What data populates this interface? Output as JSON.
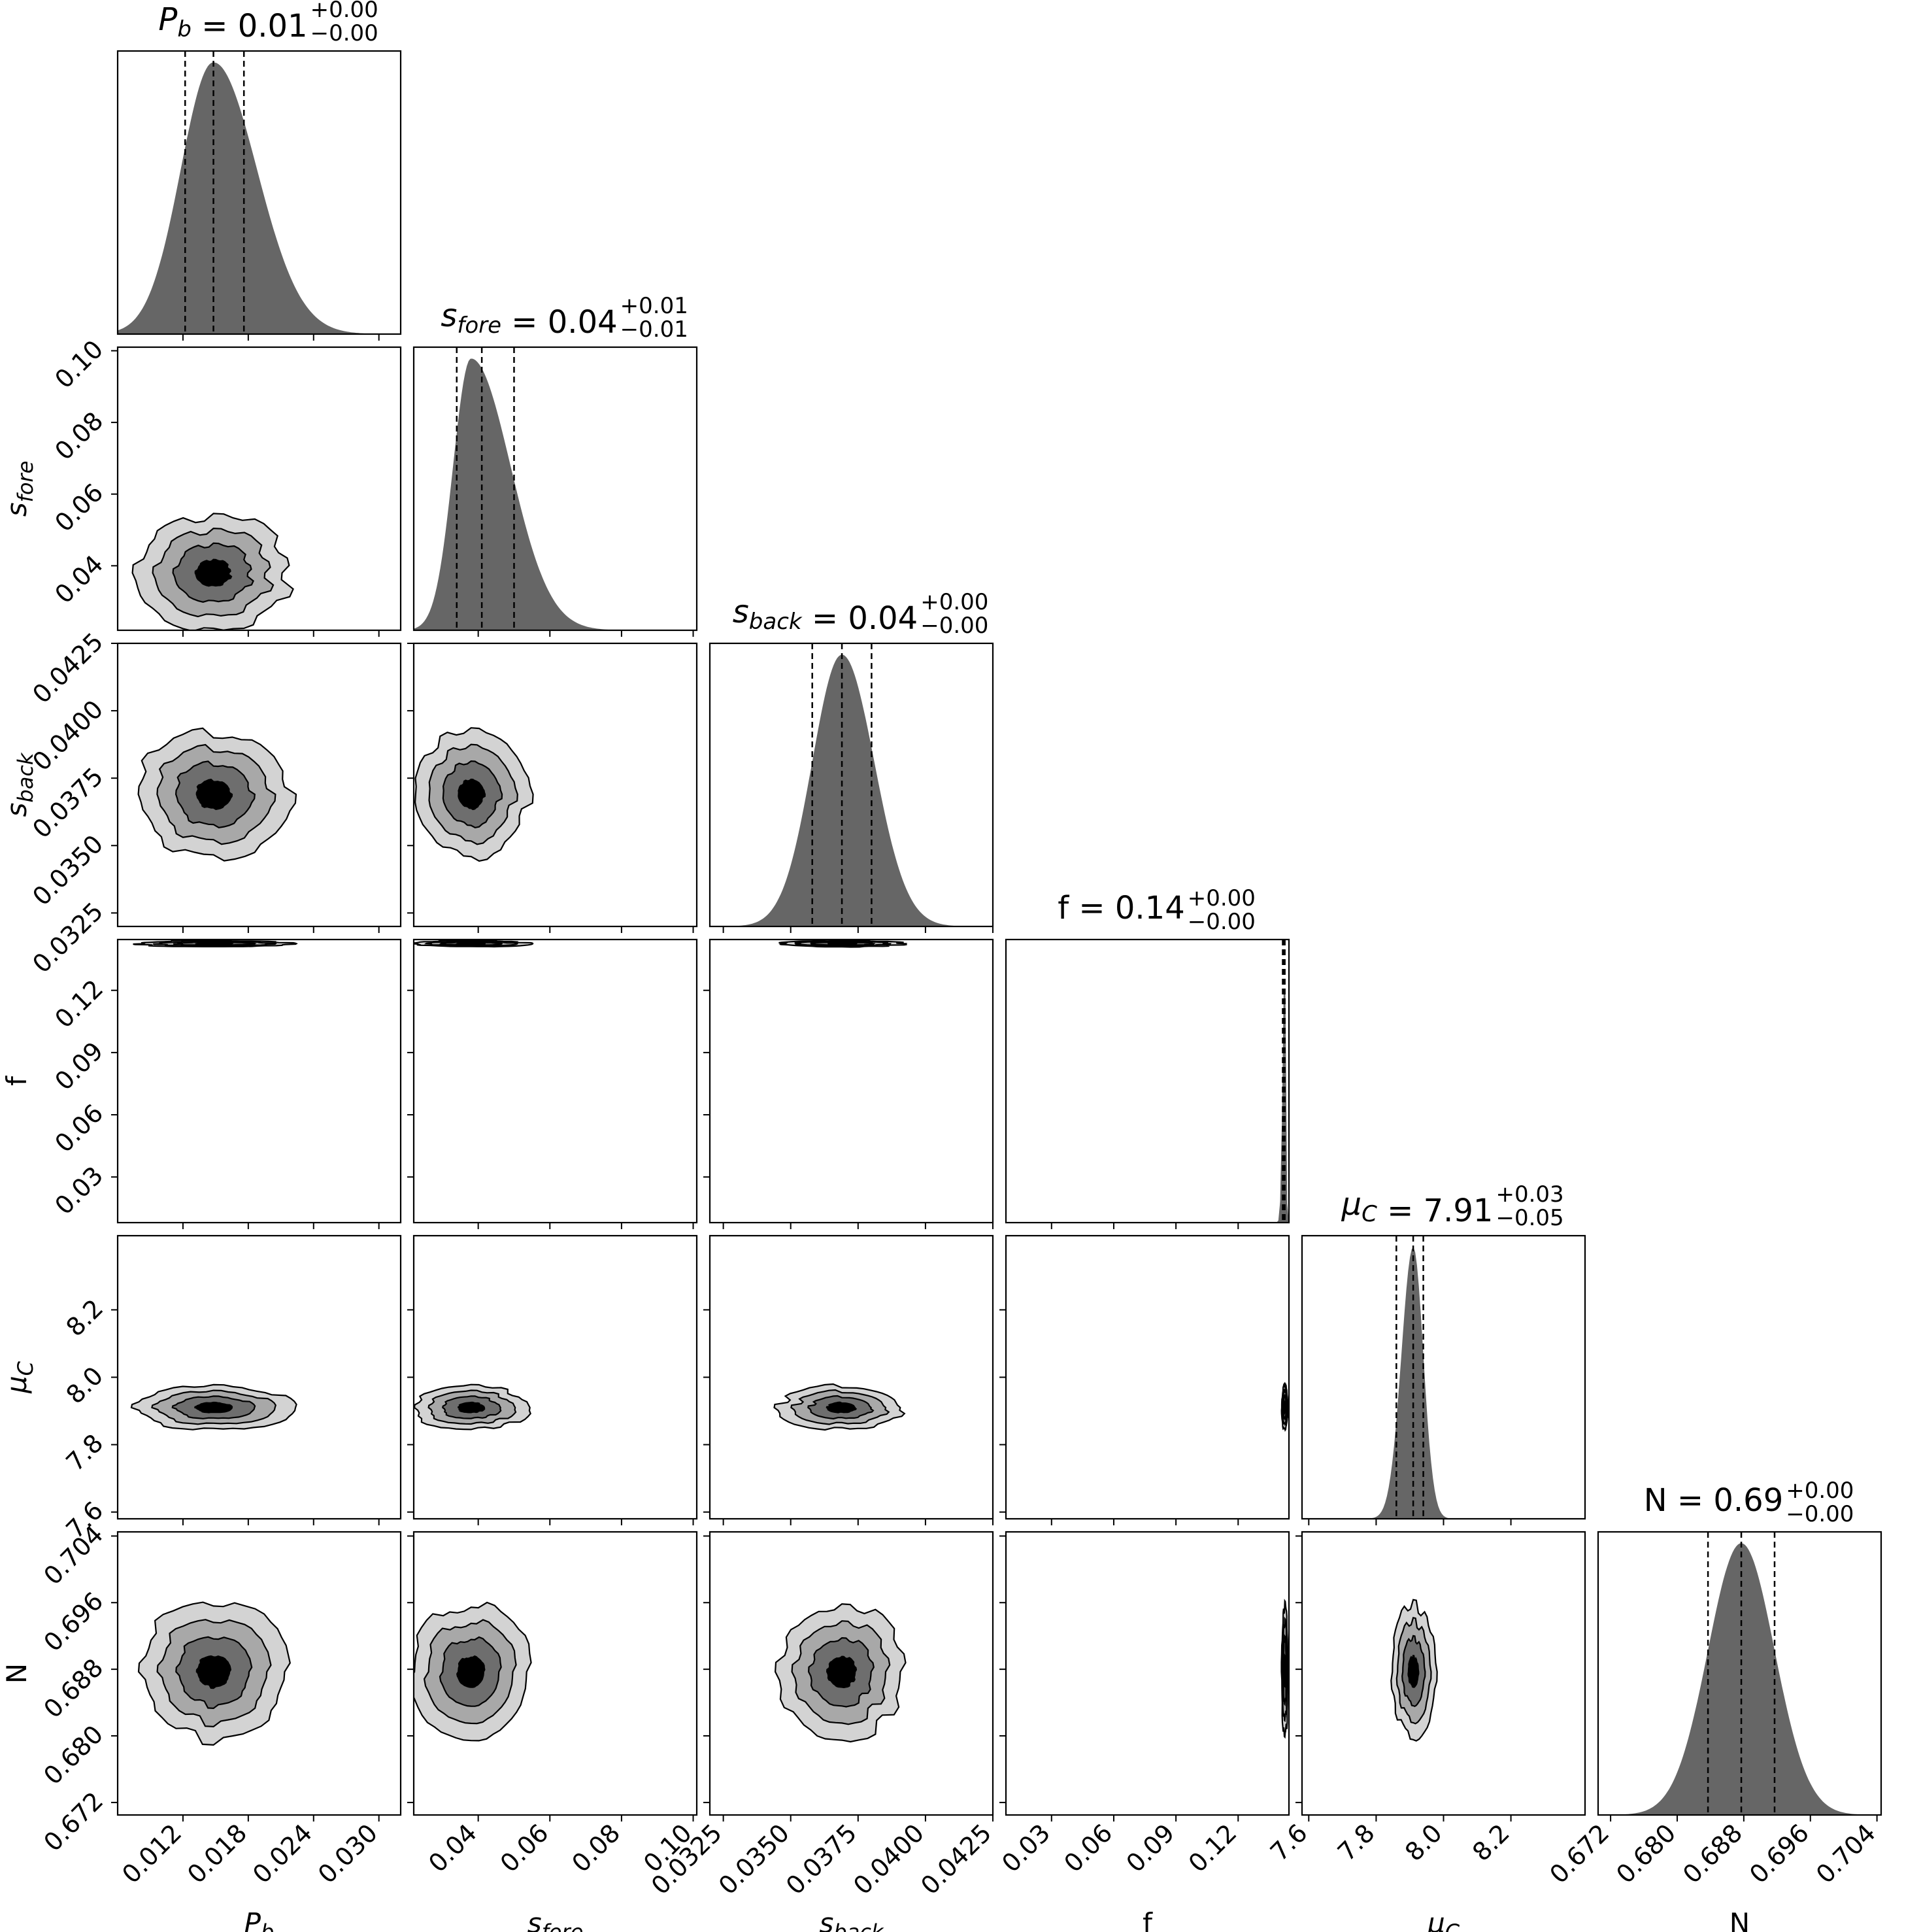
{
  "chart_data": {
    "type": "corner",
    "parameters": [
      {
        "key": "Pb",
        "label": "P",
        "label_sub": "b",
        "italic": true,
        "title_value": "0.01",
        "title_plus": "+0.00",
        "title_minus": "−0.00",
        "range": [
          0.006,
          0.032
        ],
        "ticks": [
          {
            "v": 0.012,
            "t": "0.012"
          },
          {
            "v": 0.018,
            "t": "0.018"
          },
          {
            "v": 0.024,
            "t": "0.024"
          },
          {
            "v": 0.03,
            "t": "0.030"
          }
        ],
        "quantiles": [
          0.0122,
          0.0148,
          0.0176
        ],
        "mode": 0.0148,
        "sigma_left": 0.003,
        "sigma_right": 0.004
      },
      {
        "key": "sfore",
        "label": "s",
        "label_sub": "fore",
        "italic": true,
        "title_value": "0.04",
        "title_plus": "+0.01",
        "title_minus": "−0.01",
        "range": [
          0.022,
          0.101
        ],
        "ticks": [
          {
            "v": 0.04,
            "t": "0.04"
          },
          {
            "v": 0.06,
            "t": "0.06"
          },
          {
            "v": 0.08,
            "t": "0.08"
          },
          {
            "v": 0.1,
            "t": "0.10"
          }
        ],
        "quantiles": [
          0.034,
          0.041,
          0.05
        ],
        "mode": 0.038,
        "sigma_left": 0.005,
        "sigma_right": 0.011
      },
      {
        "key": "sback",
        "label": "s",
        "label_sub": "back",
        "italic": true,
        "title_value": "0.04",
        "title_plus": "+0.00",
        "title_minus": "−0.00",
        "range": [
          0.032,
          0.0425
        ],
        "ticks": [
          {
            "v": 0.0325,
            "t": "0.0325"
          },
          {
            "v": 0.035,
            "t": "0.0350"
          },
          {
            "v": 0.0375,
            "t": "0.0375"
          },
          {
            "v": 0.04,
            "t": "0.0400"
          },
          {
            "v": 0.0425,
            "t": "0.0425"
          }
        ],
        "quantiles": [
          0.0358,
          0.0369,
          0.038
        ],
        "mode": 0.0369,
        "sigma_left": 0.0011,
        "sigma_right": 0.0012
      },
      {
        "key": "f",
        "label": "f",
        "label_sub": "",
        "italic": false,
        "title_value": "0.14",
        "title_plus": "+0.00",
        "title_minus": "−0.00",
        "range": [
          0.008,
          0.1445
        ],
        "ticks": [
          {
            "v": 0.03,
            "t": "0.03"
          },
          {
            "v": 0.06,
            "t": "0.06"
          },
          {
            "v": 0.09,
            "t": "0.09"
          },
          {
            "v": 0.12,
            "t": "0.12"
          }
        ],
        "quantiles": [
          0.1415,
          0.142,
          0.1425
        ],
        "mode": 0.1425,
        "sigma_left": 0.001,
        "sigma_right": 0.0005
      },
      {
        "key": "muC",
        "label": "μ",
        "label_sub": "C",
        "italic": true,
        "title_value": "7.91",
        "title_plus": "+0.03",
        "title_minus": "−0.05",
        "range": [
          7.58,
          8.42
        ],
        "ticks": [
          {
            "v": 7.6,
            "t": "7.6"
          },
          {
            "v": 7.8,
            "t": "7.8"
          },
          {
            "v": 8.0,
            "t": "8.0"
          },
          {
            "v": 8.2,
            "t": "8.2"
          }
        ],
        "quantiles": [
          7.86,
          7.91,
          7.94
        ],
        "mode": 7.91,
        "sigma_left": 0.035,
        "sigma_right": 0.03
      },
      {
        "key": "N",
        "label": "N",
        "label_sub": "",
        "italic": false,
        "title_value": "0.69",
        "title_plus": "+0.00",
        "title_minus": "−0.00",
        "range": [
          0.6705,
          0.7045
        ],
        "ticks": [
          {
            "v": 0.672,
            "t": "0.672"
          },
          {
            "v": 0.68,
            "t": "0.680"
          },
          {
            "v": 0.688,
            "t": "0.688"
          },
          {
            "v": 0.696,
            "t": "0.696"
          },
          {
            "v": 0.704,
            "t": "0.704"
          }
        ],
        "quantiles": [
          0.6837,
          0.6877,
          0.6917
        ],
        "mode": 0.6877,
        "sigma_left": 0.004,
        "sigma_right": 0.004
      }
    ],
    "contour_levels": 4,
    "colors": {
      "hist_fill": "#666666",
      "contour_fills": [
        "#d3d3d3",
        "#a8a8a8",
        "#6e6e6e",
        "#000000"
      ],
      "line": "#000000"
    }
  }
}
